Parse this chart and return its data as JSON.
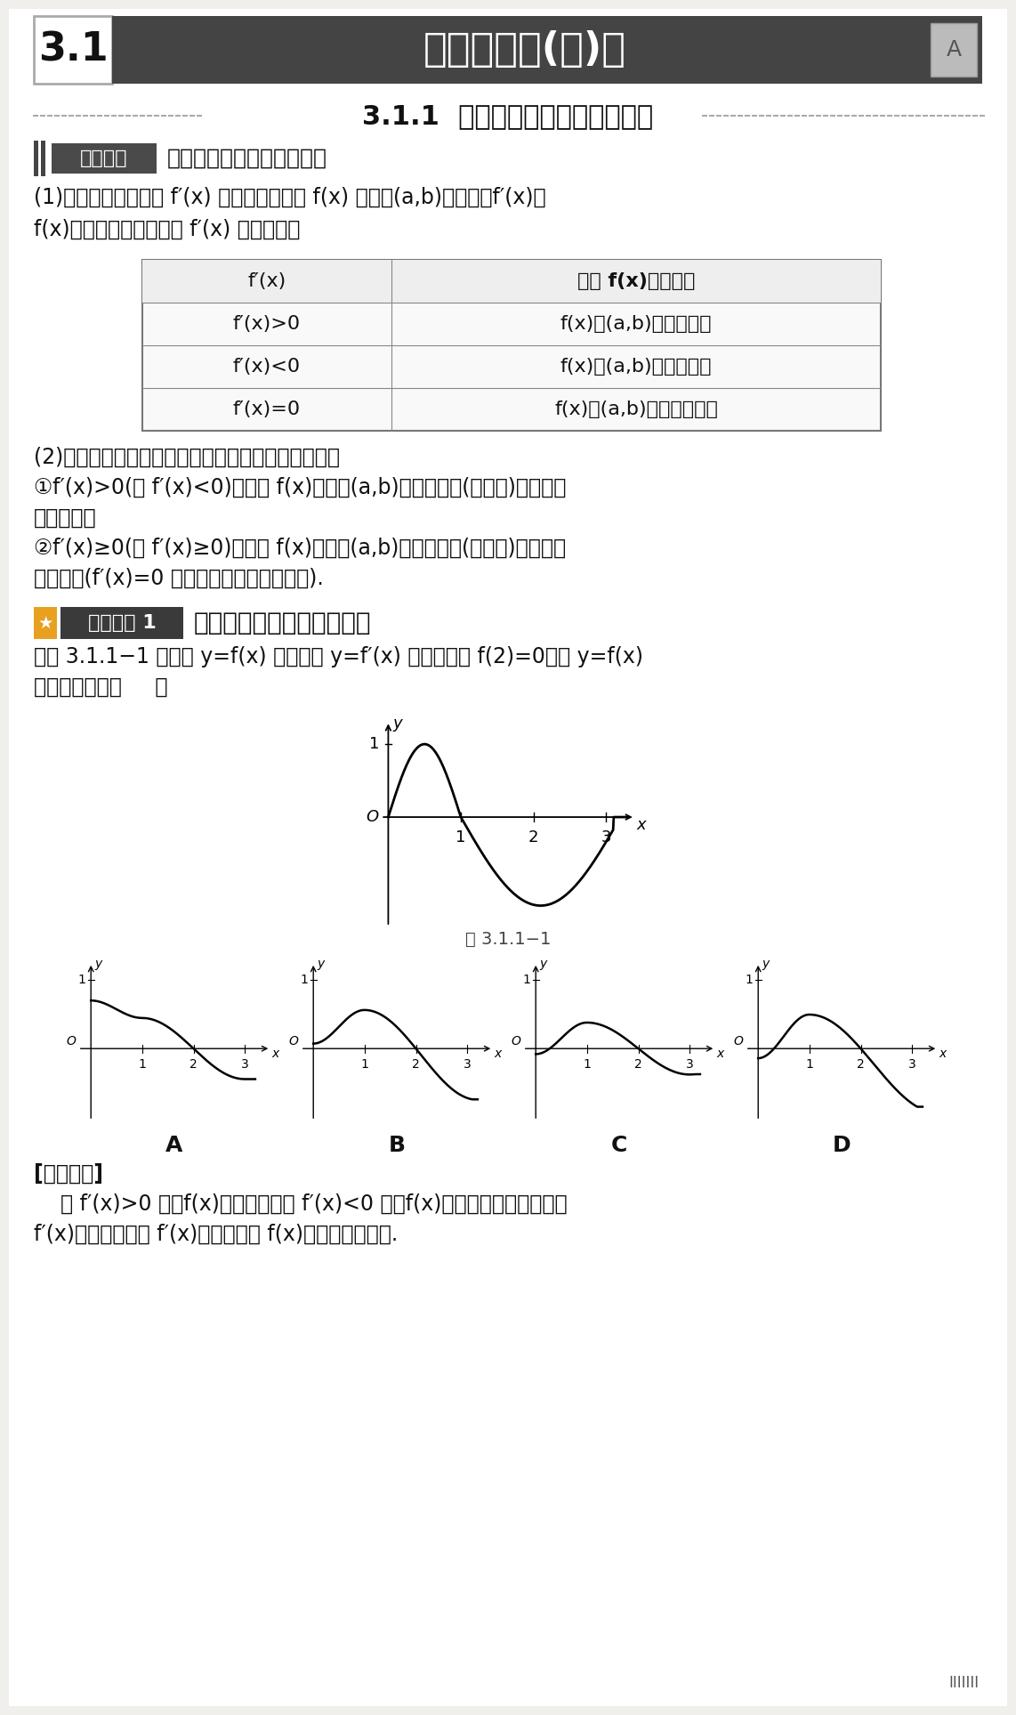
{
  "page_bg": "#f0efeb",
  "header_bg": "#4a4a4a",
  "header_number": "3.1",
  "header_title": "单调性、极(最)值",
  "section_number": "3.1.1",
  "section_title": "利用导数研究函数的单调性",
  "prereq_label": "前提知识",
  "prereq_title": "利用导数研究函数的单调性",
  "para1_line1": "(1)函数单调性与导数 f′(x) 的关系；设函数 f(x) 在区间(a,b)内可导，f′(x)是",
  "para1_line2": "f(x)的导数，若已知导数 f′(x) 的正负，则",
  "table_col1_header": "f′(x)",
  "table_col2_header": "函数 f(x)的单调性",
  "table_rows": [
    [
      "f′(x)>0",
      "f(x)在(a,b)内单调递增"
    ],
    [
      "f′(x)<0",
      "f(x)在(a,b)内单调递减"
    ],
    [
      "f′(x)=0",
      "f(x)在(a,b)内为常数函数"
    ]
  ],
  "para2_line1": "(2)用充分必要条件来诀释导数与函数单调性的关系：",
  "para2_line2": "①f′(x)>0(或 f′(x)<0)是函数 f(x)在区间(a,b)内单调递增(或递减)的充分不",
  "para2_line3": "必要条件；",
  "para2_line4": "②f′(x)≥0(或 f′(x)≥0)是函数 f(x)在区间(a,b)内单调递增(或递减)的必要不",
  "para2_line5": "充分条件(f′(x)=0 只可能在孤立的点处成立).",
  "example_label": "典型例题 1",
  "example_title": "原函数与导函数图象的关系",
  "example_text1": "如图 3.1.1−1 是函数 y=f(x) 的导函数 y=f′(x) 的图象，若 f(2)=0，则 y=f(x)",
  "example_text2": "的图象大致为（     ）",
  "fig_label": "图 3.1.1−1",
  "answer_labels": [
    "A",
    "B",
    "C",
    "D"
  ],
  "solution_header": "[思路探寻]",
  "solution_line1": "    当 f′(x)>0 时，f(x)单调递增；当 f′(x)<0 时，f(x)单调递减，观察所给的",
  "solution_line2": "f′(x)的图象，根据 f′(x)的正负判断 f(x)的增减趋势即可."
}
